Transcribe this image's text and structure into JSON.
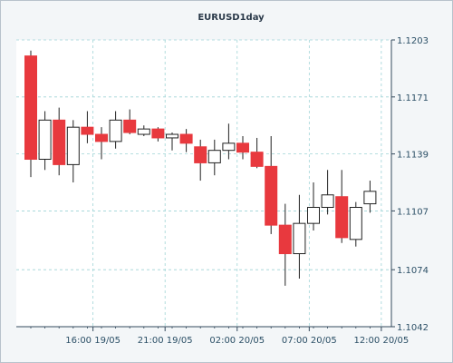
{
  "chart_data": {
    "type": "candlestick",
    "title": "EURUSD1day",
    "y_ticks": [
      1.1042,
      1.1074,
      1.1107,
      1.1139,
      1.1171,
      1.1203
    ],
    "ylim": [
      1.1042,
      1.1203
    ],
    "x_ticks": [
      "16:00 19/05",
      "21:00 19/05",
      "02:00 20/05",
      "07:00 20/05",
      "12:00 20/05"
    ],
    "x_tick_candle_index": [
      4.4,
      9.5,
      14.6,
      19.7,
      24.8
    ],
    "grid": true,
    "up_color": "#ffffff",
    "down_color": "#e8393e",
    "candles": [
      {
        "open": 1.1194,
        "high": 1.1197,
        "low": 1.1126,
        "close": 1.1136
      },
      {
        "open": 1.1136,
        "high": 1.1163,
        "low": 1.113,
        "close": 1.1158
      },
      {
        "open": 1.1158,
        "high": 1.1165,
        "low": 1.1127,
        "close": 1.1133
      },
      {
        "open": 1.1133,
        "high": 1.1158,
        "low": 1.1123,
        "close": 1.1154
      },
      {
        "open": 1.1154,
        "high": 1.1163,
        "low": 1.1145,
        "close": 1.115
      },
      {
        "open": 1.115,
        "high": 1.1154,
        "low": 1.1136,
        "close": 1.1146
      },
      {
        "open": 1.1146,
        "high": 1.1163,
        "low": 1.1142,
        "close": 1.1158
      },
      {
        "open": 1.1158,
        "high": 1.1164,
        "low": 1.115,
        "close": 1.1151
      },
      {
        "open": 1.115,
        "high": 1.1155,
        "low": 1.1149,
        "close": 1.1153
      },
      {
        "open": 1.1153,
        "high": 1.1154,
        "low": 1.1146,
        "close": 1.1148
      },
      {
        "open": 1.1148,
        "high": 1.1151,
        "low": 1.1141,
        "close": 1.115
      },
      {
        "open": 1.115,
        "high": 1.1153,
        "low": 1.114,
        "close": 1.1145
      },
      {
        "open": 1.1143,
        "high": 1.1147,
        "low": 1.1124,
        "close": 1.1134
      },
      {
        "open": 1.1134,
        "high": 1.1147,
        "low": 1.1127,
        "close": 1.1141
      },
      {
        "open": 1.1141,
        "high": 1.1156,
        "low": 1.1136,
        "close": 1.1145
      },
      {
        "open": 1.1145,
        "high": 1.1149,
        "low": 1.1136,
        "close": 1.114
      },
      {
        "open": 1.114,
        "high": 1.1148,
        "low": 1.1131,
        "close": 1.1132
      },
      {
        "open": 1.1132,
        "high": 1.1149,
        "low": 1.1094,
        "close": 1.1099
      },
      {
        "open": 1.1099,
        "high": 1.1111,
        "low": 1.1065,
        "close": 1.1083
      },
      {
        "open": 1.1083,
        "high": 1.1116,
        "low": 1.1069,
        "close": 1.11
      },
      {
        "open": 1.11,
        "high": 1.1123,
        "low": 1.1096,
        "close": 1.1109
      },
      {
        "open": 1.1109,
        "high": 1.113,
        "low": 1.1105,
        "close": 1.1116
      },
      {
        "open": 1.1115,
        "high": 1.113,
        "low": 1.1089,
        "close": 1.1092
      },
      {
        "open": 1.1091,
        "high": 1.1112,
        "low": 1.1087,
        "close": 1.1109
      },
      {
        "open": 1.1111,
        "high": 1.1124,
        "low": 1.1106,
        "close": 1.1118
      }
    ]
  }
}
